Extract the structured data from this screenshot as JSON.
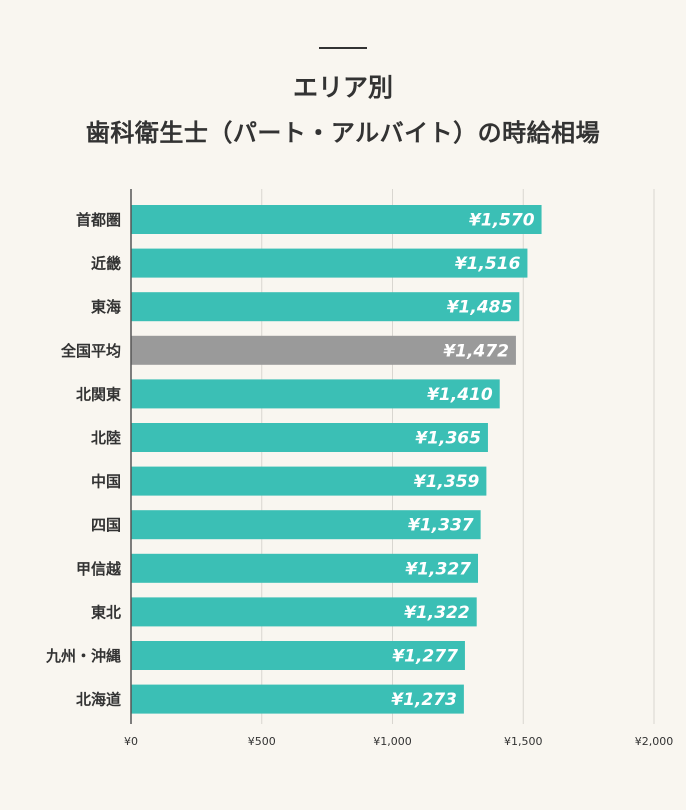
{
  "title": {
    "line1": "エリア別",
    "line2": "歯科衛生士（パート・アルバイト）の時給相場"
  },
  "colors": {
    "bar": "#3bbfb5",
    "highlight_bar": "#9a9a9a",
    "gridline": "#d9d6d0",
    "axis": "#555555"
  },
  "chart_data": {
    "type": "bar",
    "orientation": "horizontal",
    "title": "エリア別 歯科衛生士（パート・アルバイト）の時給相場",
    "categories": [
      "首都圏",
      "近畿",
      "東海",
      "全国平均",
      "北関東",
      "北陸",
      "中国",
      "四国",
      "甲信越",
      "東北",
      "九州・沖縄",
      "北海道"
    ],
    "values": [
      1570,
      1516,
      1485,
      1472,
      1410,
      1365,
      1359,
      1337,
      1327,
      1322,
      1277,
      1273
    ],
    "value_labels": [
      "¥1,570",
      "¥1,516",
      "¥1,485",
      "¥1,472",
      "¥1,410",
      "¥1,365",
      "¥1,359",
      "¥1,337",
      "¥1,327",
      "¥1,322",
      "¥1,277",
      "¥1,273"
    ],
    "highlight_category": "全国平均",
    "xlim": [
      0,
      2000
    ],
    "xticks": [
      0,
      500,
      1000,
      1500,
      2000
    ],
    "xtick_labels": [
      "¥0",
      "¥500",
      "¥1,000",
      "¥1,500",
      "¥2,000"
    ],
    "xlabel": "",
    "ylabel": "",
    "grid": true,
    "legend": "none"
  }
}
